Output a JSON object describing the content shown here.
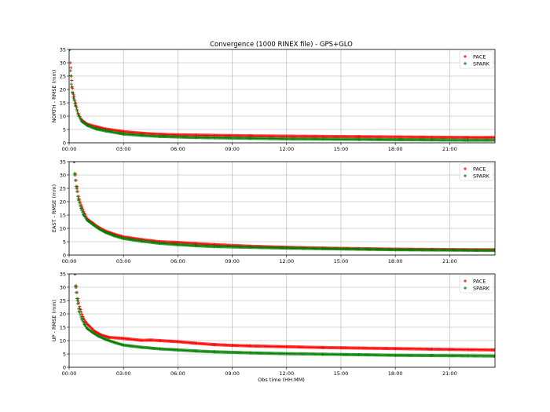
{
  "title": "Convergence (1000 RINEX file) - GPS+GLO",
  "xlabel": "Obs time (HH:MM)",
  "colors": {
    "PACE": "#ff0000",
    "SPARK": "#008000",
    "grid": "#b0b0b0"
  },
  "chart_data": [
    {
      "type": "scatter",
      "ylabel": "NORTH - RMSE (mm)",
      "xlim": [
        0,
        23.5
      ],
      "ylim": [
        0,
        35
      ],
      "yticks": [
        0,
        5,
        10,
        15,
        20,
        25,
        30,
        35
      ],
      "xticks": [
        0,
        3,
        6,
        9,
        12,
        15,
        18,
        21
      ],
      "xticklabels": [
        "00:00",
        "03:00",
        "06:00",
        "09:00",
        "12:00",
        "15:00",
        "18:00",
        "21:00"
      ],
      "grid": true,
      "legend": "top-right",
      "series": [
        {
          "name": "PACE",
          "color": "#ff0000",
          "marker": "+",
          "x": [
            0.05,
            0.08,
            0.12,
            0.17,
            0.25,
            0.35,
            0.5,
            0.7,
            1.0,
            1.5,
            2.0,
            3.0,
            4.0,
            5.0,
            6.0,
            7.0,
            8.0,
            10.0,
            12.0,
            14.0,
            16.0,
            18.0,
            20.0,
            22.0,
            23.5
          ],
          "y": [
            35,
            30,
            25,
            21,
            18,
            15,
            11,
            8.5,
            7,
            6,
            5.2,
            4.2,
            3.6,
            3.2,
            3.0,
            2.9,
            2.8,
            2.6,
            2.5,
            2.4,
            2.3,
            2.2,
            2.1,
            2.0,
            2.0
          ]
        },
        {
          "name": "SPARK",
          "color": "#008000",
          "marker": "+",
          "x": [
            0.05,
            0.08,
            0.12,
            0.17,
            0.25,
            0.35,
            0.5,
            0.7,
            1.0,
            1.5,
            2.0,
            3.0,
            4.0,
            5.0,
            6.0,
            7.0,
            8.0,
            10.0,
            12.0,
            14.0,
            16.0,
            18.0,
            20.0,
            22.0,
            23.5
          ],
          "y": [
            35,
            27,
            22,
            19,
            16.5,
            14,
            10.5,
            8,
            6.5,
            5.2,
            4.5,
            3.3,
            2.8,
            2.4,
            2.2,
            2.0,
            1.9,
            1.7,
            1.5,
            1.4,
            1.3,
            1.2,
            1.1,
            1.0,
            1.0
          ]
        }
      ]
    },
    {
      "type": "scatter",
      "ylabel": "EAST - RMSE (mm)",
      "xlim": [
        0,
        23.5
      ],
      "ylim": [
        0,
        35
      ],
      "yticks": [
        0,
        5,
        10,
        15,
        20,
        25,
        30,
        35
      ],
      "xticks": [
        0,
        3,
        6,
        9,
        12,
        15,
        18,
        21
      ],
      "xticklabels": [
        "00:00",
        "03:00",
        "06:00",
        "09:00",
        "12:00",
        "15:00",
        "18:00",
        "21:00"
      ],
      "grid": true,
      "legend": "top-right",
      "series": [
        {
          "name": "PACE",
          "color": "#ff0000",
          "marker": "+",
          "x": [
            0.3,
            0.35,
            0.45,
            0.55,
            0.7,
            0.85,
            1.0,
            1.3,
            1.6,
            2.0,
            2.5,
            3.0,
            4.0,
            5.0,
            6.0,
            7.0,
            8.0,
            10.0,
            12.0,
            14.0,
            16.0,
            18.0,
            20.0,
            22.0,
            23.5
          ],
          "y": [
            35,
            30,
            25,
            21,
            18,
            15.5,
            13.5,
            12,
            10.5,
            9,
            7.8,
            6.8,
            5.8,
            5.0,
            4.7,
            4.3,
            3.9,
            3.3,
            2.9,
            2.6,
            2.4,
            2.2,
            2.1,
            2.0,
            2.0
          ]
        },
        {
          "name": "SPARK",
          "color": "#008000",
          "marker": "+",
          "x": [
            0.25,
            0.3,
            0.4,
            0.5,
            0.65,
            0.8,
            1.0,
            1.3,
            1.6,
            2.0,
            2.5,
            3.0,
            4.0,
            5.0,
            6.0,
            7.0,
            8.0,
            10.0,
            12.0,
            14.0,
            16.0,
            18.0,
            20.0,
            22.0,
            23.5
          ],
          "y": [
            35,
            30,
            25,
            21,
            17.5,
            15,
            13,
            11.5,
            10,
            8.5,
            7.2,
            6.2,
            5.2,
            4.4,
            3.9,
            3.5,
            3.2,
            2.9,
            2.6,
            2.4,
            2.2,
            2.0,
            1.9,
            1.8,
            1.7
          ]
        }
      ]
    },
    {
      "type": "scatter",
      "ylabel": "UP - RMSE (mm)",
      "xlim": [
        0,
        23.5
      ],
      "ylim": [
        0,
        35
      ],
      "yticks": [
        0,
        5,
        10,
        15,
        20,
        25,
        30,
        35
      ],
      "xticks": [
        0,
        3,
        6,
        9,
        12,
        15,
        18,
        21
      ],
      "xticklabels": [
        "00:00",
        "03:00",
        "06:00",
        "09:00",
        "12:00",
        "15:00",
        "18:00",
        "21:00"
      ],
      "grid": true,
      "legend": "top-right",
      "series": [
        {
          "name": "PACE",
          "color": "#ff0000",
          "marker": "+",
          "x": [
            0.35,
            0.4,
            0.5,
            0.6,
            0.75,
            0.9,
            1.1,
            1.4,
            1.8,
            2.2,
            3.0,
            4.0,
            4.5,
            5.0,
            6.0,
            7.0,
            8.0,
            9.0,
            10.0,
            12.0,
            14.0,
            16.0,
            18.0,
            20.0,
            22.0,
            23.5
          ],
          "y": [
            35,
            30,
            25,
            22,
            19,
            17,
            15.5,
            13.5,
            12,
            11.2,
            10.8,
            10.1,
            10.2,
            10.0,
            9.6,
            9.0,
            8.5,
            8.2,
            8.0,
            7.7,
            7.4,
            7.2,
            7.0,
            6.8,
            6.6,
            6.5
          ]
        },
        {
          "name": "SPARK",
          "color": "#008000",
          "marker": "+",
          "x": [
            0.3,
            0.35,
            0.45,
            0.55,
            0.7,
            0.85,
            1.0,
            1.3,
            1.6,
            2.0,
            2.5,
            3.0,
            4.0,
            5.0,
            6.0,
            7.0,
            8.0,
            10.0,
            12.0,
            14.0,
            16.0,
            18.0,
            20.0,
            22.0,
            23.5
          ],
          "y": [
            35,
            30,
            25,
            21,
            18,
            16,
            14.5,
            13,
            11.7,
            10.5,
            9.3,
            8.3,
            7.5,
            6.9,
            6.5,
            6.1,
            5.8,
            5.4,
            5.1,
            4.9,
            4.7,
            4.5,
            4.4,
            4.3,
            4.2
          ]
        }
      ]
    }
  ]
}
